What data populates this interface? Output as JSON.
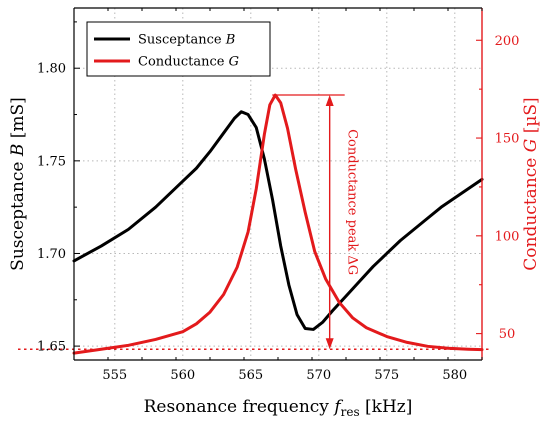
{
  "chart_data": {
    "type": "line",
    "xlabel": "Resonance frequency",
    "xlabel_symbol": "f",
    "xlabel_subscript": "res",
    "xlabel_unit": "[kHz]",
    "xlim": [
      552,
      582
    ],
    "xticks": [
      "555",
      "560",
      "565",
      "570",
      "575",
      "580"
    ],
    "y_left": {
      "label": "Susceptance",
      "symbol": "B",
      "unit": "[mS]",
      "lim": [
        1.6425,
        1.8325
      ],
      "ticks": [
        "1.65",
        "1.70",
        "1.75",
        "1.80"
      ],
      "color": "#000000"
    },
    "y_right": {
      "label": "Conductance",
      "symbol": "G",
      "unit": "[µS]",
      "lim": [
        36.5,
        216.5
      ],
      "ticks": [
        "50",
        "100",
        "150",
        "200"
      ],
      "color": "#e31a1c"
    },
    "grid": "dotted",
    "legend_position": "top-left",
    "series": [
      {
        "name": "Susceptance B",
        "legend_main": "Susceptance",
        "legend_symbol": "B",
        "axis": "left",
        "color": "#000000",
        "points": [
          [
            552,
            1.696
          ],
          [
            554,
            1.704
          ],
          [
            556,
            1.713
          ],
          [
            558,
            1.725
          ],
          [
            560,
            1.739
          ],
          [
            561,
            1.746
          ],
          [
            562,
            1.755
          ],
          [
            563,
            1.765
          ],
          [
            563.8,
            1.773
          ],
          [
            564.3,
            1.7765
          ],
          [
            564.8,
            1.775
          ],
          [
            565.4,
            1.768
          ],
          [
            566,
            1.751
          ],
          [
            566.6,
            1.729
          ],
          [
            567.2,
            1.704
          ],
          [
            567.8,
            1.683
          ],
          [
            568.4,
            1.667
          ],
          [
            569,
            1.6595
          ],
          [
            569.6,
            1.659
          ],
          [
            570.3,
            1.663
          ],
          [
            571,
            1.669
          ],
          [
            572,
            1.677
          ],
          [
            573,
            1.685
          ],
          [
            574,
            1.693
          ],
          [
            575,
            1.7
          ],
          [
            576,
            1.707
          ],
          [
            577,
            1.713
          ],
          [
            578,
            1.719
          ],
          [
            579,
            1.725
          ],
          [
            580,
            1.73
          ],
          [
            581,
            1.735
          ],
          [
            582,
            1.74
          ]
        ]
      },
      {
        "name": "Conductance G",
        "legend_main": "Conductance",
        "legend_symbol": "G",
        "axis": "right",
        "color": "#e31a1c",
        "points": [
          [
            552,
            40
          ],
          [
            554,
            42
          ],
          [
            556,
            44
          ],
          [
            558,
            47
          ],
          [
            560,
            51
          ],
          [
            561,
            55
          ],
          [
            562,
            61
          ],
          [
            563,
            70
          ],
          [
            564,
            84
          ],
          [
            564.8,
            102
          ],
          [
            565.4,
            124
          ],
          [
            566,
            152
          ],
          [
            566.4,
            167
          ],
          [
            566.8,
            172
          ],
          [
            567.2,
            168
          ],
          [
            567.7,
            155
          ],
          [
            568.3,
            134
          ],
          [
            569,
            112
          ],
          [
            569.7,
            92
          ],
          [
            570.5,
            78
          ],
          [
            571.5,
            66
          ],
          [
            572.5,
            58
          ],
          [
            573.5,
            53
          ],
          [
            575,
            48.5
          ],
          [
            576.5,
            45.5
          ],
          [
            578,
            43.5
          ],
          [
            579.5,
            42.5
          ],
          [
            581,
            42
          ],
          [
            582,
            41.8
          ]
        ]
      }
    ],
    "annotations": {
      "baseline_G": 42,
      "peak_x": 566.8,
      "peak_G": 172,
      "arrow_x": 570.8,
      "arrow_label": "Conductance peak ΔG"
    }
  }
}
